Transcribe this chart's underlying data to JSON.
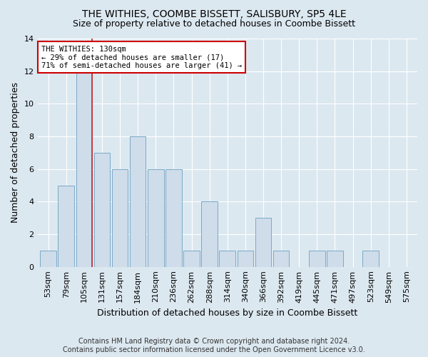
{
  "title": "THE WITHIES, COOMBE BISSETT, SALISBURY, SP5 4LE",
  "subtitle": "Size of property relative to detached houses in Coombe Bissett",
  "xlabel": "Distribution of detached houses by size in Coombe Bissett",
  "ylabel": "Number of detached properties",
  "categories": [
    "53sqm",
    "79sqm",
    "105sqm",
    "131sqm",
    "157sqm",
    "184sqm",
    "210sqm",
    "236sqm",
    "262sqm",
    "288sqm",
    "314sqm",
    "340sqm",
    "366sqm",
    "392sqm",
    "419sqm",
    "445sqm",
    "471sqm",
    "497sqm",
    "523sqm",
    "549sqm",
    "575sqm"
  ],
  "values": [
    1,
    5,
    12,
    7,
    6,
    8,
    6,
    6,
    1,
    4,
    1,
    1,
    3,
    1,
    0,
    1,
    1,
    0,
    1,
    0,
    0
  ],
  "bar_color": "#cfdcea",
  "bar_edge_color": "#7aaac8",
  "highlight_bar_index": 2,
  "highlight_line_color": "#cc2222",
  "ylim": [
    0,
    14
  ],
  "yticks": [
    0,
    2,
    4,
    6,
    8,
    10,
    12,
    14
  ],
  "annotation_text": "THE WITHIES: 130sqm\n← 29% of detached houses are smaller (17)\n71% of semi-detached houses are larger (41) →",
  "annotation_box_color": "#ffffff",
  "annotation_box_edge_color": "#cc0000",
  "footer_line1": "Contains HM Land Registry data © Crown copyright and database right 2024.",
  "footer_line2": "Contains public sector information licensed under the Open Government Licence v3.0.",
  "background_color": "#dce8f0",
  "plot_background_color": "#dce8f0",
  "title_fontsize": 10,
  "subtitle_fontsize": 9,
  "axis_label_fontsize": 9,
  "tick_fontsize": 8,
  "footer_fontsize": 7
}
